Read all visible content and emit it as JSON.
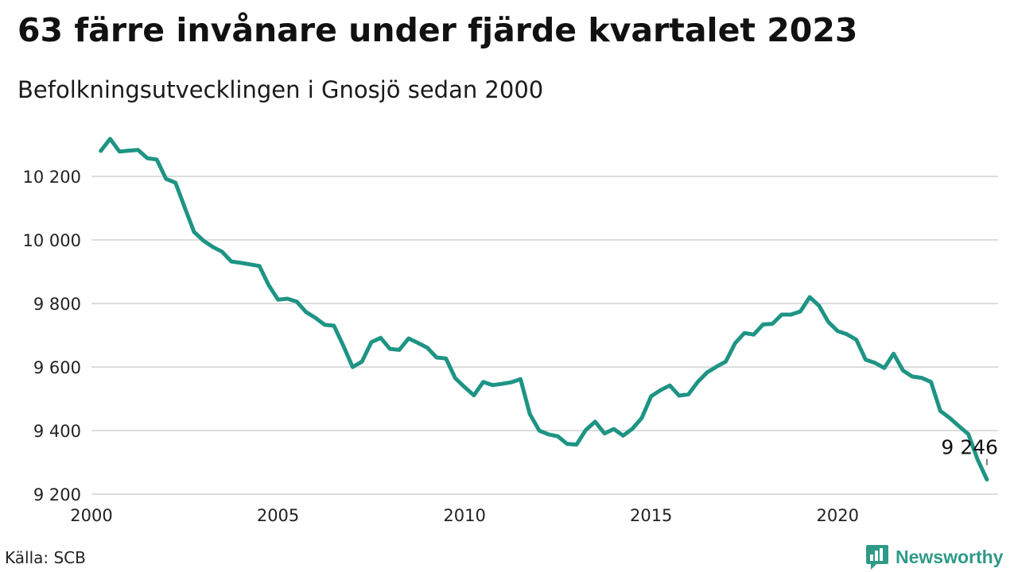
{
  "header": {
    "title": "63 färre invånare under fjärde kvartalet 2023",
    "subtitle": "Befolkningsutvecklingen i Gnosjö sedan 2000"
  },
  "footer": {
    "source": "Källa: SCB",
    "brand": "Newsworthy",
    "brand_icon": "bar-chart-bubble-icon"
  },
  "colors": {
    "line": "#1e9484",
    "grid": "#dddddd",
    "brand": "#2f9a88"
  },
  "chart_data": {
    "type": "line",
    "title": "63 färre invånare under fjärde kvartalet 2023",
    "subtitle": "Befolkningsutvecklingen i Gnosjö sedan 2000",
    "xlabel": "",
    "ylabel": "",
    "xlim": [
      2000,
      2024.3
    ],
    "ylim": [
      9200,
      10330
    ],
    "x_ticks": [
      "2000",
      "2005",
      "2010",
      "2015",
      "2020"
    ],
    "y_ticks": [
      "9 200",
      "9 400",
      "9 600",
      "9 800",
      "10 000",
      "10 200"
    ],
    "y_tick_values": [
      9200,
      9400,
      9600,
      9800,
      10000,
      10200
    ],
    "grid": "horizontal",
    "series": [
      {
        "x": [
          2000.25,
          2000.5,
          2000.75,
          2001.0,
          2001.25,
          2001.5,
          2001.75,
          2002.0,
          2002.25,
          2002.5,
          2002.75,
          2003.0,
          2003.25,
          2003.5,
          2003.75,
          2004.0,
          2004.25,
          2004.5,
          2004.75,
          2005.0,
          2005.25,
          2005.5,
          2005.75,
          2006.0,
          2006.25,
          2006.5,
          2006.75,
          2007.0,
          2007.25,
          2007.5,
          2007.75,
          2008.0,
          2008.25,
          2008.5,
          2008.75,
          2009.0,
          2009.25,
          2009.5,
          2009.75,
          2010.0,
          2010.25,
          2010.5,
          2010.75,
          2011.0,
          2011.25,
          2011.5,
          2011.75,
          2012.0,
          2012.25,
          2012.5,
          2012.75,
          2013.0,
          2013.25,
          2013.5,
          2013.75,
          2014.0,
          2014.25,
          2014.5,
          2014.75,
          2015.0,
          2015.25,
          2015.5,
          2015.75,
          2016.0,
          2016.25,
          2016.5,
          2016.75,
          2017.0,
          2017.25,
          2017.5,
          2017.75,
          2018.0,
          2018.25,
          2018.5,
          2018.75,
          2019.0,
          2019.25,
          2019.5,
          2019.75,
          2020.0,
          2020.25,
          2020.5,
          2020.75,
          2021.0,
          2021.25,
          2021.5,
          2021.75,
          2022.0,
          2022.25,
          2022.5,
          2022.75,
          2023.0,
          2023.25,
          2023.5,
          2023.75,
          2024.0
        ],
        "values": [
          10280,
          10318,
          10278,
          10281,
          10283,
          10257,
          10253,
          10192,
          10180,
          10102,
          10025,
          9998,
          9978,
          9963,
          9932,
          9928,
          9923,
          9918,
          9858,
          9812,
          9815,
          9806,
          9773,
          9755,
          9733,
          9730,
          9667,
          9600,
          9617,
          9678,
          9692,
          9657,
          9654,
          9690,
          9676,
          9661,
          9630,
          9627,
          9565,
          9537,
          9511,
          9553,
          9543,
          9547,
          9552,
          9562,
          9452,
          9400,
          9388,
          9382,
          9358,
          9356,
          9402,
          9428,
          9391,
          9405,
          9384,
          9406,
          9440,
          9508,
          9527,
          9542,
          9510,
          9514,
          9553,
          9583,
          9601,
          9617,
          9675,
          9707,
          9702,
          9734,
          9736,
          9765,
          9765,
          9775,
          9820,
          9793,
          9742,
          9713,
          9703,
          9686,
          9623,
          9613,
          9597,
          9642,
          9589,
          9570,
          9566,
          9553,
          9462,
          9440,
          9414,
          9389,
          9309,
          9246
        ]
      }
    ],
    "annotations": [
      {
        "text": "9 246",
        "x": 2024.0,
        "y": 9246
      }
    ]
  }
}
